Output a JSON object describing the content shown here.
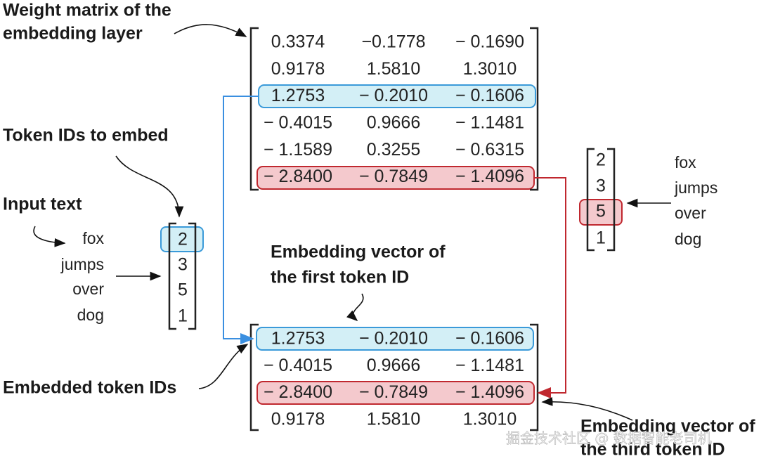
{
  "labels": {
    "weight_matrix": [
      "Weight matrix of the",
      "embedding layer"
    ],
    "token_ids": "Token IDs to embed",
    "input_text": "Input text",
    "first_vector": [
      "Embedding vector of",
      "the first token ID"
    ],
    "embedded": "Embedded token IDs",
    "third_vector": [
      "Embedding vector of",
      "the third token ID"
    ]
  },
  "input_words": [
    "fox",
    "jumps",
    "over",
    "dog"
  ],
  "token_ids": [
    "2",
    "3",
    "5",
    "1"
  ],
  "weight_matrix": [
    [
      "0.3374",
      "−0.1778",
      "− 0.1690"
    ],
    [
      "0.9178",
      "1.5810",
      "1.3010"
    ],
    [
      "1.2753",
      "− 0.2010",
      "− 0.1606"
    ],
    [
      "− 0.4015",
      "0.9666",
      "− 1.1481"
    ],
    [
      "− 1.1589",
      "0.3255",
      "− 0.6315"
    ],
    [
      "− 2.8400",
      "− 0.7849",
      "− 1.4096"
    ]
  ],
  "lookup": {
    "token_ids": [
      "2",
      "3",
      "5",
      "1"
    ],
    "words": [
      "fox",
      "jumps",
      "over",
      "dog"
    ]
  },
  "embedded_matrix": [
    [
      "1.2753",
      "− 0.2010",
      "− 0.1606"
    ],
    [
      "− 0.4015",
      "0.9666",
      "− 1.1481"
    ],
    [
      "− 2.8400",
      "− 0.7849",
      "− 1.4096"
    ],
    [
      "0.9178",
      "1.5810",
      "1.3010"
    ]
  ],
  "watermark": "掘金技术社区 @ 数据智能老司机"
}
